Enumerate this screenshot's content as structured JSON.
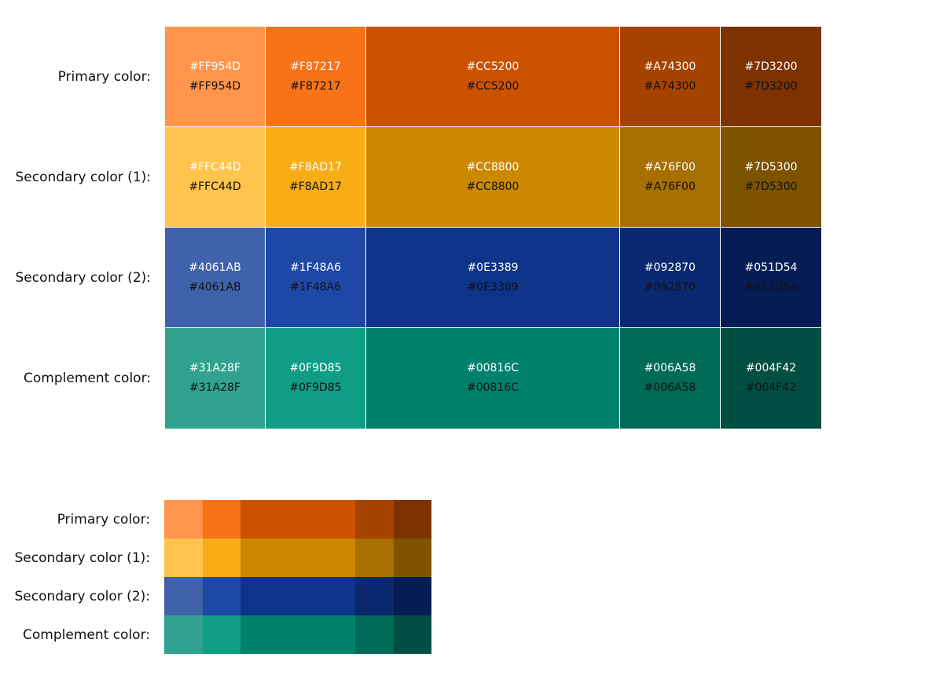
{
  "rows": [
    {
      "label": "Primary color:",
      "swatches": [
        {
          "hex": "#FF954D",
          "color": "#FF954D"
        },
        {
          "hex": "#F87217",
          "color": "#F87217"
        },
        {
          "hex": "#CC5200",
          "color": "#CC5200"
        },
        {
          "hex": "#A74300",
          "color": "#A74300"
        },
        {
          "hex": "#7D3200",
          "color": "#7D3200"
        }
      ]
    },
    {
      "label": "Secondary color (1):",
      "swatches": [
        {
          "hex": "#FFC44D",
          "color": "#FFC44D"
        },
        {
          "hex": "#F8AD17",
          "color": "#F8AD17"
        },
        {
          "hex": "#CC8800",
          "color": "#CC8800"
        },
        {
          "hex": "#A76F00",
          "color": "#A76F00"
        },
        {
          "hex": "#7D5300",
          "color": "#7D5300"
        }
      ]
    },
    {
      "label": "Secondary color (2):",
      "swatches": [
        {
          "hex": "#4061AB",
          "color": "#4061AB"
        },
        {
          "hex": "#1F48A6",
          "color": "#1F48A6"
        },
        {
          "hex": "#0E3389",
          "color": "#0E3389"
        },
        {
          "hex": "#092870",
          "color": "#092870"
        },
        {
          "hex": "#051D54",
          "color": "#051D54"
        }
      ]
    },
    {
      "label": "Complement color:",
      "swatches": [
        {
          "hex": "#31A28F",
          "color": "#31A28F"
        },
        {
          "hex": "#0F9D85",
          "color": "#0F9D85"
        },
        {
          "hex": "#00816C",
          "color": "#00816C"
        },
        {
          "hex": "#006A58",
          "color": "#006A58"
        },
        {
          "hex": "#004F42",
          "color": "#004F42"
        }
      ]
    }
  ]
}
